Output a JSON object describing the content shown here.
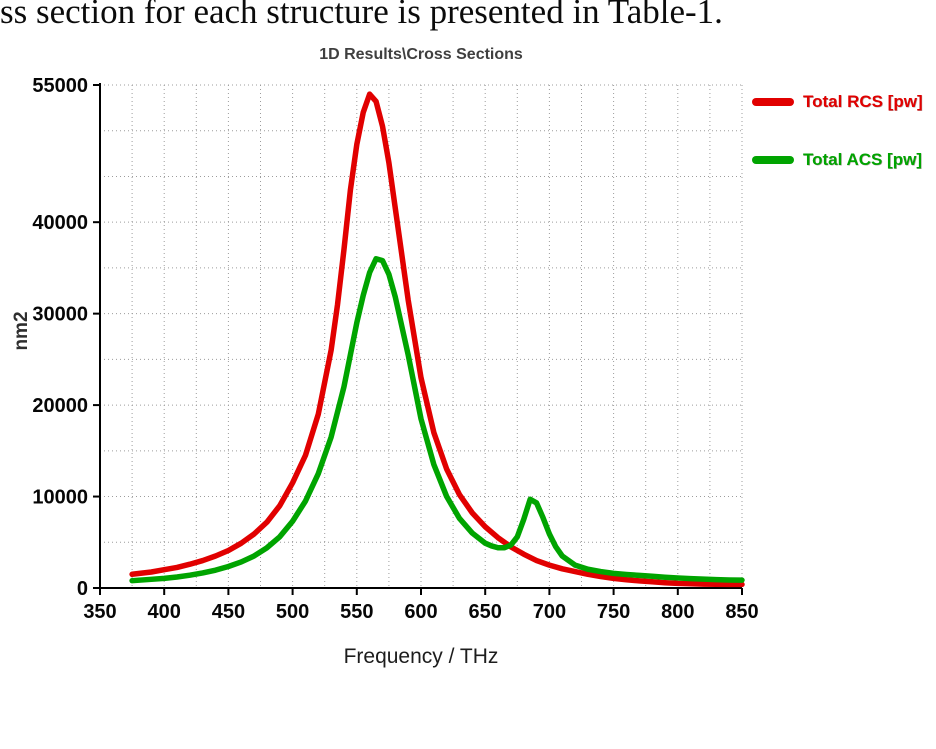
{
  "document": {
    "text": "ss section for each structure is presented in Table-1."
  },
  "chart_data": {
    "type": "line",
    "title": "1D Results\\Cross Sections",
    "xlabel": "Frequency / THz",
    "ylabel": "nm2",
    "xlim": [
      350,
      850
    ],
    "ylim": [
      0,
      55000
    ],
    "x_ticks": [
      350,
      400,
      450,
      500,
      550,
      600,
      650,
      700,
      750,
      800,
      850
    ],
    "y_ticks": [
      0,
      10000,
      20000,
      30000,
      40000,
      55000
    ],
    "x_minor_step": 25,
    "y_minor_step": 5000,
    "grid": true,
    "legend_position": "right",
    "series": [
      {
        "name": "Total RCS [pw]",
        "color": "#e10000",
        "x": [
          375,
          390,
          400,
          410,
          420,
          430,
          440,
          450,
          460,
          470,
          480,
          490,
          500,
          510,
          520,
          530,
          535,
          540,
          545,
          550,
          555,
          560,
          565,
          570,
          575,
          580,
          590,
          600,
          610,
          620,
          630,
          640,
          650,
          660,
          670,
          680,
          690,
          700,
          710,
          720,
          730,
          740,
          750,
          760,
          770,
          780,
          790,
          800,
          810,
          820,
          830,
          840,
          850
        ],
        "y": [
          1500,
          1750,
          2000,
          2250,
          2600,
          3000,
          3500,
          4100,
          4900,
          5900,
          7200,
          9000,
          11500,
          14500,
          19000,
          26000,
          31000,
          37000,
          43500,
          48500,
          52000,
          54000,
          53200,
          50500,
          46500,
          41500,
          31500,
          23000,
          17000,
          13000,
          10200,
          8200,
          6700,
          5500,
          4500,
          3700,
          3000,
          2500,
          2100,
          1800,
          1500,
          1250,
          1050,
          900,
          780,
          680,
          580,
          500,
          460,
          430,
          410,
          395,
          390
        ]
      },
      {
        "name": "Total ACS [pw]",
        "color": "#00a400",
        "x": [
          375,
          390,
          400,
          410,
          420,
          430,
          440,
          450,
          460,
          470,
          480,
          490,
          500,
          510,
          520,
          530,
          540,
          545,
          550,
          555,
          560,
          565,
          570,
          575,
          580,
          590,
          600,
          610,
          620,
          630,
          640,
          650,
          655,
          660,
          665,
          670,
          675,
          680,
          685,
          690,
          695,
          700,
          705,
          710,
          720,
          730,
          740,
          750,
          760,
          770,
          780,
          790,
          800,
          810,
          820,
          830,
          840,
          850
        ],
        "y": [
          800,
          950,
          1050,
          1200,
          1400,
          1650,
          1950,
          2350,
          2850,
          3500,
          4400,
          5600,
          7300,
          9500,
          12500,
          16500,
          22000,
          25500,
          29000,
          32000,
          34500,
          36000,
          35800,
          34300,
          31800,
          25500,
          18500,
          13500,
          10000,
          7600,
          6000,
          4900,
          4600,
          4400,
          4400,
          4700,
          5600,
          7500,
          9700,
          9300,
          7700,
          5900,
          4500,
          3500,
          2500,
          2050,
          1800,
          1600,
          1480,
          1380,
          1280,
          1180,
          1100,
          1030,
          970,
          920,
          880,
          860
        ]
      }
    ]
  }
}
